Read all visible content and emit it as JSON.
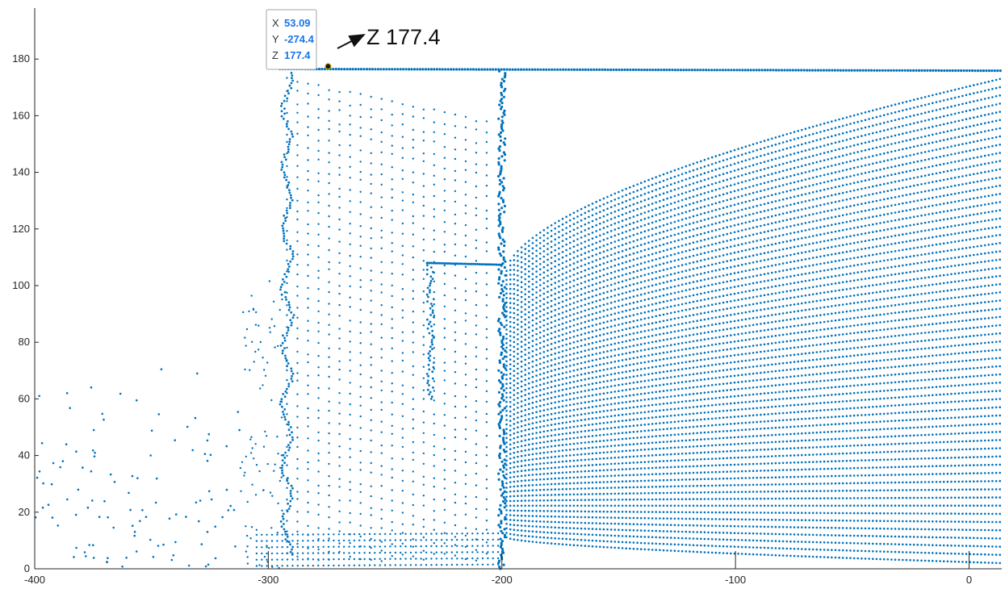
{
  "chart_data": {
    "type": "scatter",
    "title": "",
    "xlabel": "",
    "ylabel": "",
    "xlim": [
      -400,
      14
    ],
    "ylim": [
      0,
      198
    ],
    "x_ticks": [
      -400,
      -300,
      -200,
      -100,
      0
    ],
    "y_ticks": [
      0,
      20,
      40,
      60,
      80,
      100,
      120,
      140,
      160,
      180
    ],
    "x_tick_labels": [
      "-400",
      "-300",
      "-200",
      "-100",
      "0"
    ],
    "y_tick_labels": [
      "0",
      "20",
      "40",
      "60",
      "80",
      "100",
      "120",
      "140",
      "160",
      "180"
    ],
    "grid": false,
    "marker_color": "#0072bd",
    "series": [
      {
        "description_points": "point cloud; representative sampled points along scan lines",
        "values_outline": {
          "top_edge_z": 177,
          "left_wall_x": -293,
          "right_wall_x": -200,
          "step_top_z": 108,
          "step_x_range": [
            -232,
            -200
          ],
          "sparse_region_x": [
            -400,
            -310
          ],
          "sparse_region_z": [
            0,
            82
          ]
        }
      }
    ],
    "datatip": {
      "point": {
        "x": -274.4,
        "z": 177.4
      },
      "rows": [
        {
          "key": "X",
          "value": "53.09"
        },
        {
          "key": "Y",
          "value": "-274.4"
        },
        {
          "key": "Z",
          "value": "177.4"
        }
      ]
    },
    "annotation": {
      "text": "Z 177.4"
    }
  }
}
